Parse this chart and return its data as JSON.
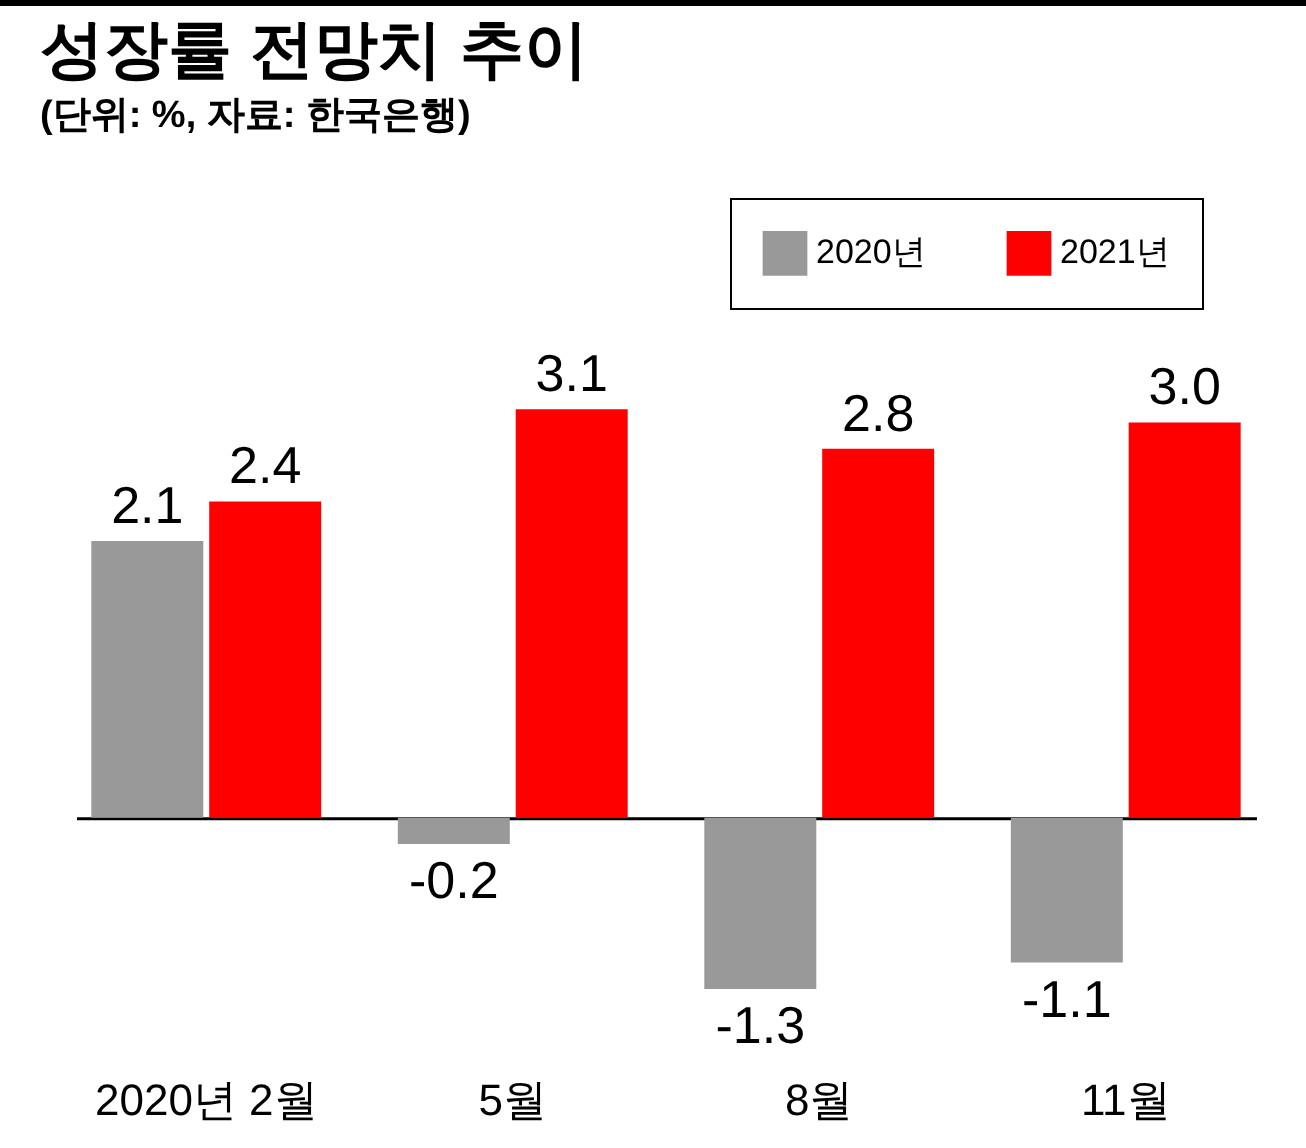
{
  "chart_data": {
    "type": "bar",
    "title": "성장률 전망치 추이",
    "subtitle": "(단위: %, 자료: 한국은행)",
    "categories": [
      "2020년 2월",
      "5월",
      "8월",
      "11월"
    ],
    "series": [
      {
        "name": "2020년",
        "color": "#999999",
        "values": [
          2.1,
          -0.2,
          -1.3,
          -1.1
        ],
        "value_labels": [
          "2.1",
          "-0.2",
          "-1.3",
          "-1.1"
        ]
      },
      {
        "name": "2021년",
        "color": "#ff0000",
        "values": [
          2.4,
          3.1,
          2.8,
          3.0
        ],
        "value_labels": [
          "2.4",
          "3.1",
          "2.8",
          "3.0"
        ]
      }
    ],
    "legend": "top right",
    "grid": false
  }
}
